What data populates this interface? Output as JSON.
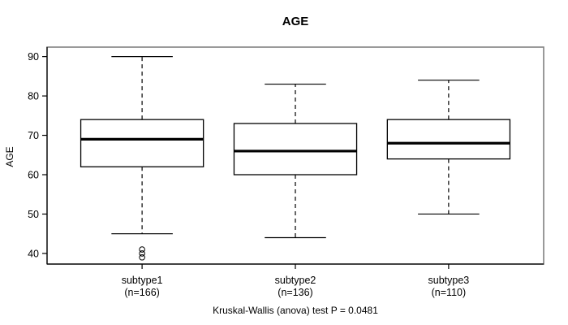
{
  "title": "AGE",
  "y_axis": {
    "label": "AGE"
  },
  "footer": "Kruskal-Wallis (anova) test P = 0.0481",
  "colors": {
    "background": "#ffffff",
    "frame": "#808080",
    "axis": "#000000",
    "box_border": "#000000",
    "box_fill": "#ffffff",
    "median": "#000000",
    "whisker": "#000000",
    "outlier": "#000000",
    "text": "#000000"
  },
  "chart_data": {
    "type": "boxplot",
    "title": "AGE",
    "xlabel": "",
    "ylabel": "AGE",
    "ylim": [
      37.3,
      92.4
    ],
    "yticks": [
      40,
      50,
      60,
      70,
      80,
      90
    ],
    "grid": false,
    "legend": "none",
    "annotation": "Kruskal-Wallis (anova) test P = 0.0481",
    "groups": [
      {
        "label": "subtype1",
        "sublabel": "(n=166)",
        "n": 166,
        "whisker_low": 45,
        "q1": 62,
        "median": 69,
        "q3": 74,
        "whisker_high": 90,
        "outliers": [
          41,
          40,
          39
        ]
      },
      {
        "label": "subtype2",
        "sublabel": "(n=136)",
        "n": 136,
        "whisker_low": 44,
        "q1": 60,
        "median": 66,
        "q3": 73,
        "whisker_high": 83,
        "outliers": []
      },
      {
        "label": "subtype3",
        "sublabel": "(n=110)",
        "n": 110,
        "whisker_low": 50,
        "q1": 64,
        "median": 68,
        "q3": 74,
        "whisker_high": 84,
        "outliers": []
      }
    ]
  }
}
